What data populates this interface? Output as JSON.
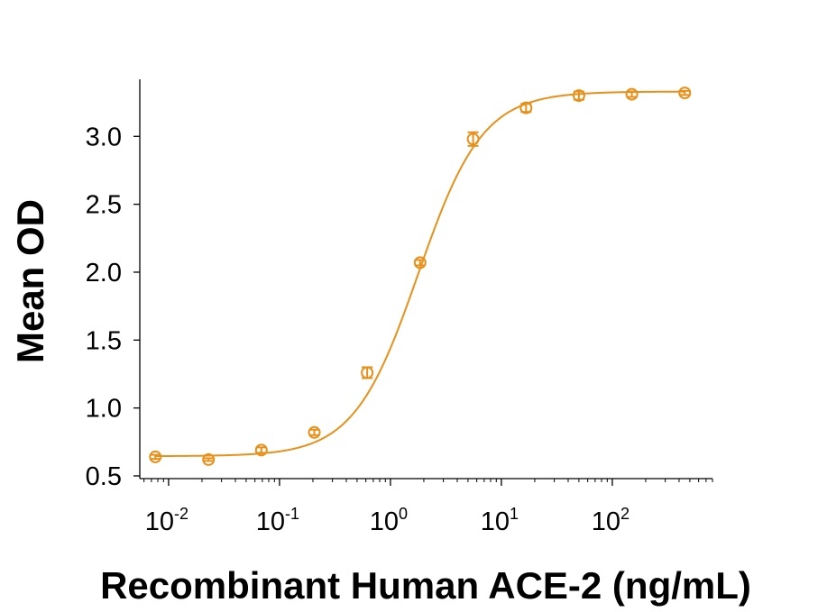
{
  "chart_data": {
    "type": "scatter",
    "title": "",
    "xlabel": "Recombinant Human ACE-2 (ng/mL)",
    "ylabel": "Mean OD",
    "x_scale": "log",
    "xlim": [
      0.0055,
      800
    ],
    "ylim": [
      0.48,
      3.42
    ],
    "x_ticks": [
      {
        "value": 0.01,
        "base": "10",
        "exp": "-2"
      },
      {
        "value": 0.1,
        "base": "10",
        "exp": "-1"
      },
      {
        "value": 1,
        "base": "10",
        "exp": "0"
      },
      {
        "value": 10,
        "base": "10",
        "exp": "1"
      },
      {
        "value": 100,
        "base": "10",
        "exp": "2"
      }
    ],
    "y_ticks": [
      "0.5",
      "1.0",
      "1.5",
      "2.0",
      "2.5",
      "3.0"
    ],
    "grid": false,
    "color": "#E8901A",
    "series": [
      {
        "name": "",
        "x": [
          0.0076,
          0.0229,
          0.0686,
          0.206,
          0.617,
          1.85,
          5.56,
          16.7,
          50,
          150,
          450
        ],
        "y": [
          0.64,
          0.62,
          0.69,
          0.82,
          1.26,
          2.07,
          2.98,
          3.21,
          3.3,
          3.31,
          3.32
        ],
        "y_err": [
          0.015,
          0.01,
          0.02,
          0.02,
          0.04,
          0.02,
          0.05,
          0.03,
          0.03,
          0.02,
          0.015
        ]
      }
    ],
    "fit": {
      "type": "4PL",
      "bottom": 0.645,
      "top": 3.33,
      "ec50": 1.78,
      "hill": 1.5
    }
  }
}
